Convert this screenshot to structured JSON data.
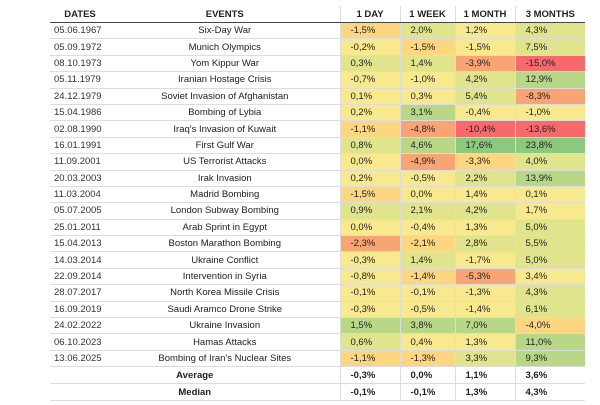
{
  "header": [
    "DATES",
    "EVENTS",
    "1 DAY",
    "1 WEEK",
    "1 MONTH",
    "3 MONTHS"
  ],
  "rows": [
    [
      "05.06.1967",
      "Six-Day War",
      "-1,5%",
      "2,0%",
      "1,2%",
      "4,3%"
    ],
    [
      "05.09.1972",
      "Munich Olympics",
      "-0,2%",
      "-1,5%",
      "-1,5%",
      "7,5%"
    ],
    [
      "08.10.1973",
      "Yom Kippur War",
      "0,3%",
      "1,4%",
      "-3,9%",
      "-15,0%"
    ],
    [
      "05.11.1979",
      "Iranian Hostage Crisis",
      "-0,7%",
      "-1,0%",
      "4,2%",
      "12,9%"
    ],
    [
      "24.12.1979",
      "Soviet Invasion of Afghanistan",
      "0,1%",
      "0,3%",
      "5,4%",
      "-8,3%"
    ],
    [
      "15.04.1986",
      "Bombing of Lybia",
      "0,2%",
      "3,1%",
      "-0,4%",
      "-1,0%"
    ],
    [
      "02.08.1990",
      "Iraq's Invasion of Kuwait",
      "-1,1%",
      "-4,8%",
      "-10,4%",
      "-13,6%"
    ],
    [
      "16.01.1991",
      "First Gulf War",
      "0,8%",
      "4,6%",
      "17,6%",
      "23,8%"
    ],
    [
      "11.09.2001",
      "US Terrorist Attacks",
      "0,0%",
      "-4,9%",
      "-3,3%",
      "4,0%"
    ],
    [
      "20.03.2003",
      "Irak Invasion",
      "0,2%",
      "-0,5%",
      "2,2%",
      "13,9%"
    ],
    [
      "11.03.2004",
      "Madrid Bombing",
      "-1,5%",
      "0,0%",
      "1,4%",
      "0,1%"
    ],
    [
      "05.07.2005",
      "London Subway Bombing",
      "0,9%",
      "2,1%",
      "4,2%",
      "1,7%"
    ],
    [
      "25.01.2011",
      "Arab Sprint in Egypt",
      "0,0%",
      "-0,4%",
      "1,3%",
      "5,0%"
    ],
    [
      "15.04.2013",
      "Boston Marathon Bombing",
      "-2,3%",
      "-2,1%",
      "2,8%",
      "5,5%"
    ],
    [
      "14.03.2014",
      "Ukraine Conflict",
      "-0,3%",
      "1,4%",
      "-1,7%",
      "5,0%"
    ],
    [
      "22.09.2014",
      "Intervention in Syria",
      "-0,8%",
      "-1,4%",
      "-5,3%",
      "3,4%"
    ],
    [
      "28.07.2017",
      "North Korea Missile Crisis",
      "-0,1%",
      "-0,1%",
      "-1,3%",
      "4,3%"
    ],
    [
      "16.09.2019",
      "Saudi Aramco Drone Strike",
      "-0,3%",
      "-0,5%",
      "-1,4%",
      "6,1%"
    ],
    [
      "24.02.2022",
      "Ukraine Invasion",
      "1,5%",
      "3,8%",
      "7,0%",
      "-4,0%"
    ],
    [
      "06.10.2023",
      "Hamas Attacks",
      "0,6%",
      "0,4%",
      "1,3%",
      "11,0%"
    ],
    [
      "13.06.2025",
      "Bombing of Iran's Nuclear Sites",
      "-1,1%",
      "-1,3%",
      "3,3%",
      "9,3%"
    ]
  ],
  "cell_colors": [
    [
      "#fcd680",
      "#e0e48c",
      "#f8e98f",
      "#e0e48c"
    ],
    [
      "#f8e98f",
      "#fcd680",
      "#f8e98f",
      "#e0e48c"
    ],
    [
      "#e0e48c",
      "#e0e48c",
      "#f9a474",
      "#f8696b"
    ],
    [
      "#f8e98f",
      "#f8e98f",
      "#e0e48c",
      "#b8d888"
    ],
    [
      "#f8e98f",
      "#f8e98f",
      "#e0e48c",
      "#f9a474"
    ],
    [
      "#f8e98f",
      "#b8d888",
      "#f8e98f",
      "#f8e98f"
    ],
    [
      "#fcd680",
      "#f9a474",
      "#f8696b",
      "#f8696b"
    ],
    [
      "#e0e48c",
      "#b8d888",
      "#8cc97e",
      "#8cc97e"
    ],
    [
      "#f8e98f",
      "#f9a474",
      "#fcd680",
      "#e0e48c"
    ],
    [
      "#f8e98f",
      "#f8e98f",
      "#e0e48c",
      "#b8d888"
    ],
    [
      "#fcd680",
      "#f8e98f",
      "#f8e98f",
      "#f8e98f"
    ],
    [
      "#e0e48c",
      "#e0e48c",
      "#e0e48c",
      "#f8e98f"
    ],
    [
      "#f8e98f",
      "#f8e98f",
      "#f8e98f",
      "#e0e48c"
    ],
    [
      "#f9a474",
      "#fcd680",
      "#e0e48c",
      "#e0e48c"
    ],
    [
      "#f8e98f",
      "#e0e48c",
      "#f8e98f",
      "#e0e48c"
    ],
    [
      "#f8e98f",
      "#fcd680",
      "#f9a474",
      "#f8e98f"
    ],
    [
      "#f8e98f",
      "#f8e98f",
      "#f8e98f",
      "#e0e48c"
    ],
    [
      "#f8e98f",
      "#f8e98f",
      "#f8e98f",
      "#e0e48c"
    ],
    [
      "#b8d888",
      "#b8d888",
      "#b8d888",
      "#fcd680"
    ],
    [
      "#e0e48c",
      "#f8e98f",
      "#f8e98f",
      "#b8d888"
    ],
    [
      "#fcd680",
      "#fcd680",
      "#e0e48c",
      "#b8d888"
    ]
  ],
  "summary": [
    [
      "Average",
      "-0,3%",
      "0,0%",
      "1,1%",
      "3,6%"
    ],
    [
      "Median",
      "-0,1%",
      "-0,1%",
      "1,3%",
      "4,3%"
    ]
  ]
}
